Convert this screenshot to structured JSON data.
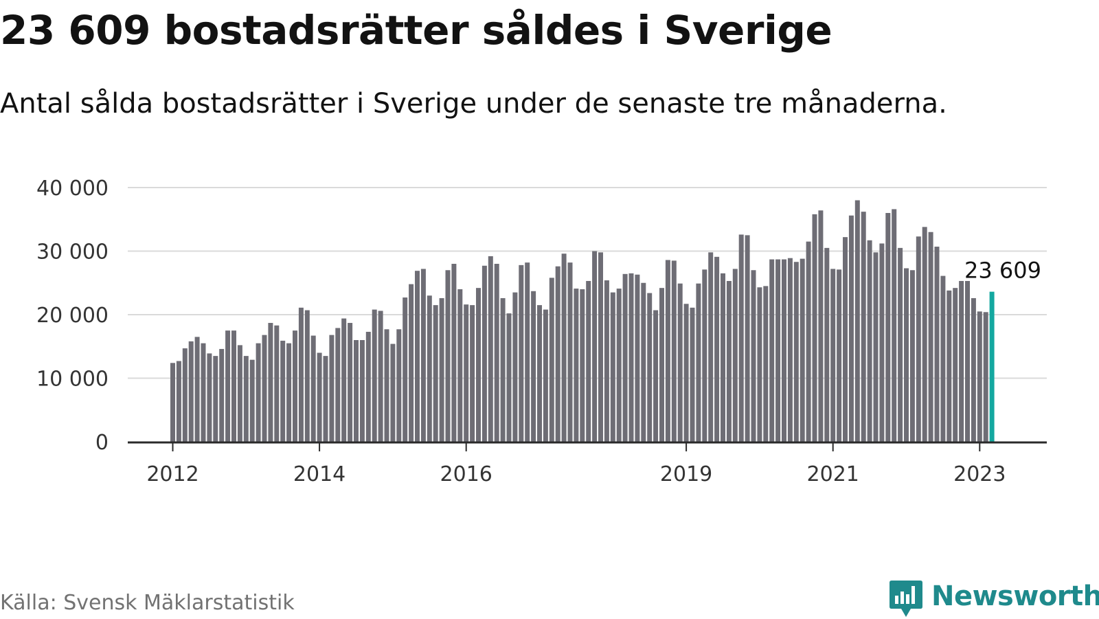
{
  "header": {
    "title": "23 609 bostadsrätter såldes i Sverige",
    "subtitle": "Antal sålda bostadsrätter i Sverige under de senaste tre månaderna."
  },
  "footer": {
    "source": "Källa: Svensk Mäklarstatistik",
    "brand": "Newsworthy"
  },
  "colors": {
    "bar": "#6e6d75",
    "highlight": "#14a8a0",
    "grid": "#dadada",
    "axis": "#2a2a2a",
    "brand": "#1f8a8c"
  },
  "icons": {
    "brand_logo": "newsworthy-chart-bubble-icon"
  },
  "chart_data": {
    "type": "bar",
    "title": "23 609 bostadsrätter såldes i Sverige",
    "subtitle": "Antal sålda bostadsrätter i Sverige under de senaste tre månaderna.",
    "xlabel": "",
    "ylabel": "",
    "ylim": [
      0,
      40000
    ],
    "yticks": [
      0,
      10000,
      20000,
      30000,
      40000
    ],
    "ytick_labels": [
      "0",
      "10 000",
      "20 000",
      "30 000",
      "40 000"
    ],
    "xtick_labels": [
      {
        "label": "2012",
        "bar_index": 0
      },
      {
        "label": "2014",
        "bar_index": 24
      },
      {
        "label": "2016",
        "bar_index": 48
      },
      {
        "label": "2019",
        "bar_index": 84
      },
      {
        "label": "2021",
        "bar_index": 108
      },
      {
        "label": "2023",
        "bar_index": 132
      }
    ],
    "grid": true,
    "highlight_index": 134,
    "annotation": {
      "text": "23 609",
      "bar_index": 134
    },
    "values": [
      12400,
      12700,
      14700,
      15800,
      16500,
      15500,
      13900,
      13500,
      14600,
      17500,
      17500,
      15200,
      13500,
      12900,
      15500,
      16800,
      18700,
      18300,
      15900,
      15500,
      17500,
      21100,
      20700,
      16700,
      14000,
      13500,
      16800,
      17900,
      19400,
      18700,
      16000,
      16000,
      17300,
      20800,
      20600,
      17700,
      15400,
      17700,
      22700,
      24800,
      26900,
      27200,
      23000,
      21500,
      22600,
      27000,
      28000,
      24000,
      21600,
      21500,
      24200,
      27700,
      29200,
      28000,
      22600,
      20200,
      23500,
      27800,
      28200,
      23700,
      21500,
      20800,
      25800,
      27600,
      29600,
      28200,
      24100,
      24000,
      25300,
      30000,
      29800,
      25400,
      23500,
      24100,
      26400,
      26500,
      26300,
      25000,
      23400,
      20700,
      24200,
      28600,
      28500,
      24900,
      21700,
      21100,
      24900,
      27100,
      29800,
      29100,
      26500,
      25300,
      27200,
      32600,
      32500,
      27000,
      24300,
      24500,
      28700,
      28700,
      28700,
      28900,
      28300,
      28800,
      31500,
      35800,
      36400,
      30500,
      27200,
      27100,
      32200,
      35600,
      38000,
      36200,
      31700,
      29800,
      31200,
      36000,
      36600,
      30500,
      27300,
      27000,
      32300,
      33800,
      33000,
      30700,
      26100,
      23800,
      24200,
      25300,
      25300,
      22600,
      20500,
      20400,
      23609
    ]
  }
}
